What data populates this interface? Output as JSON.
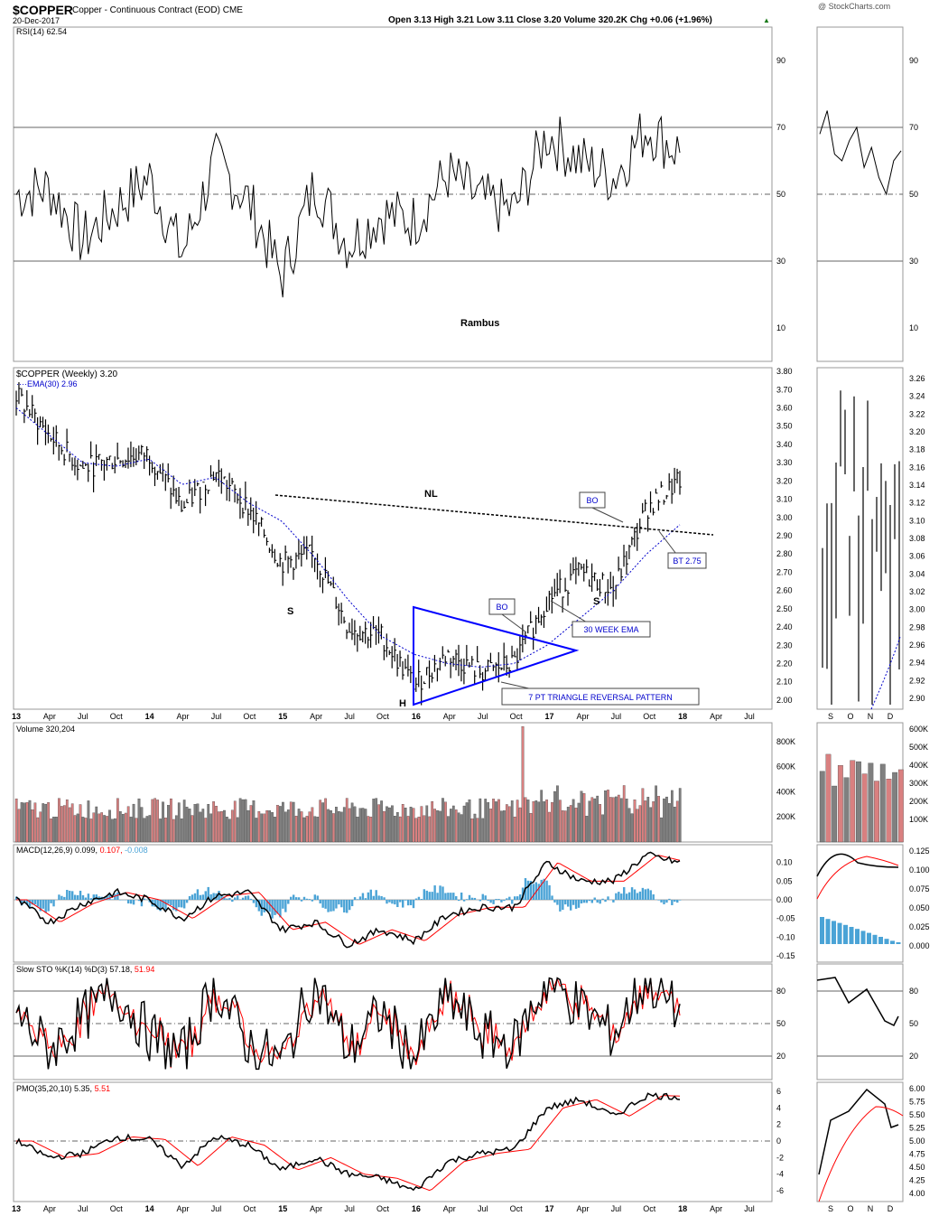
{
  "header": {
    "symbol": "$COPPER",
    "name": "Copper - Continuous Contract (EOD)",
    "exchange": "CME",
    "date": "20-Dec-2017",
    "ohlc": "Open 3.13  High 3.21  Low 3.11  Close 3.20  Volume 320.2K  Chg +0.06 (+1.96%)",
    "ohlc_tail": "▲",
    "watermark": "@ StockCharts.com"
  },
  "author": "Rambus",
  "colors": {
    "up": "#000000",
    "volume_up": "#808080",
    "volume_down": "#d98080",
    "ema": "#0000cc",
    "signal": "#ff0000",
    "histogram": "#4aa3d6",
    "overbought_fill": "#5a8a5a",
    "oversold_fill": "#a04040",
    "triangle": "#0000ff",
    "annotation_text": "#0000cc"
  },
  "panels": {
    "rsi": {
      "label": "RSI(14) 62.54",
      "ticks": [
        "90",
        "70",
        "50",
        "30",
        "10"
      ]
    },
    "price": {
      "label": "$COPPER (Weekly) 3.20",
      "ema_label": "EMA(30) 2.96",
      "ticks": [
        "3.80",
        "3.70",
        "3.60",
        "3.50",
        "3.40",
        "3.30",
        "3.20",
        "3.10",
        "3.00",
        "2.90",
        "2.80",
        "2.70",
        "2.60",
        "2.50",
        "2.40",
        "2.30",
        "2.20",
        "2.10",
        "2.00"
      ],
      "ticks_right": [
        "3.26",
        "3.24",
        "3.22",
        "3.20",
        "3.18",
        "3.16",
        "3.14",
        "3.12",
        "3.10",
        "3.08",
        "3.06",
        "3.04",
        "3.02",
        "3.00",
        "2.98",
        "2.96",
        "2.94",
        "2.92",
        "2.90"
      ]
    },
    "volume": {
      "label": "Volume 320,204",
      "ticks": [
        "800K",
        "600K",
        "400K",
        "200K"
      ],
      "ticks_right": [
        "600K",
        "500K",
        "400K",
        "300K",
        "200K",
        "100K"
      ]
    },
    "macd": {
      "label": "MACD(12,26,9)",
      "v1": "0.099",
      "v2": "0.107",
      "v3": "-0.008",
      "ticks": [
        "0.10",
        "0.05",
        "0.00",
        "-0.05",
        "-0.10",
        "-0.15"
      ],
      "ticks_right": [
        "0.125",
        "0.100",
        "0.075",
        "0.050",
        "0.025",
        "0.000"
      ]
    },
    "sto": {
      "label": "Slow STO %K(14) %D(3)",
      "v1": "57.18",
      "v2": "51.94",
      "ticks": [
        "80",
        "50",
        "20"
      ]
    },
    "pmo": {
      "label": "PMO(35,20,10)",
      "v1": "5.35",
      "v2": "5.51",
      "ticks": [
        "6",
        "4",
        "2",
        "0",
        "-2",
        "-4",
        "-6"
      ],
      "ticks_right": [
        "6.00",
        "5.75",
        "5.50",
        "5.25",
        "5.00",
        "4.75",
        "4.50",
        "4.25",
        "4.00"
      ]
    }
  },
  "x_axis": [
    "13",
    "Apr",
    "Jul",
    "Oct",
    "14",
    "Apr",
    "Jul",
    "Oct",
    "15",
    "Apr",
    "Jul",
    "Oct",
    "16",
    "Apr",
    "Jul",
    "Oct",
    "17",
    "Apr",
    "Jul",
    "Oct",
    "18",
    "Apr",
    "Jul"
  ],
  "x_axis_right": [
    "S",
    "O",
    "N",
    "D"
  ],
  "annotations": {
    "nl": "NL",
    "s1": "S",
    "h": "H",
    "s2": "S",
    "bo1": "BO",
    "bo2": "BO",
    "ema30": "30 WEEK EMA",
    "bt": "BT 2.75",
    "triangle": "7 PT TRIANGLE REVERSAL PATTERN"
  },
  "chart_data": {
    "type": "line",
    "title": "$COPPER (Weekly)",
    "x": [
      "13",
      "Apr",
      "Jul",
      "Oct",
      "14",
      "Apr",
      "Jul",
      "Oct",
      "15",
      "Apr",
      "Jul",
      "Oct",
      "16",
      "Apr",
      "Jul",
      "Oct",
      "17",
      "Apr",
      "Jul",
      "Oct",
      "18"
    ],
    "series": [
      {
        "name": "$COPPER (Weekly)",
        "values": [
          3.67,
          3.45,
          3.27,
          3.32,
          3.35,
          3.05,
          3.25,
          3.05,
          2.75,
          2.8,
          2.4,
          2.35,
          2.08,
          2.25,
          2.15,
          2.2,
          2.55,
          2.7,
          2.6,
          3.05,
          3.2
        ]
      },
      {
        "name": "EMA(30)",
        "values": [
          3.6,
          3.45,
          3.3,
          3.28,
          3.32,
          3.18,
          3.22,
          3.08,
          2.98,
          2.78,
          2.55,
          2.35,
          2.25,
          2.2,
          2.18,
          2.2,
          2.3,
          2.45,
          2.6,
          2.8,
          2.96
        ]
      },
      {
        "name": "RSI(14)",
        "values": [
          50,
          52,
          36,
          46,
          55,
          32,
          60,
          48,
          25,
          53,
          35,
          44,
          42,
          56,
          48,
          45,
          68,
          60,
          55,
          70,
          62.54
        ]
      },
      {
        "name": "MACD(12,26,9)",
        "values": [
          0.0,
          -0.06,
          -0.01,
          0.02,
          0.0,
          -0.05,
          0.01,
          0.02,
          -0.08,
          -0.06,
          -0.12,
          -0.08,
          -0.11,
          -0.04,
          -0.02,
          -0.02,
          0.1,
          0.05,
          0.05,
          0.12,
          0.099
        ]
      },
      {
        "name": "Slow STO %K(14)",
        "values": [
          60,
          25,
          55,
          80,
          40,
          20,
          85,
          30,
          15,
          88,
          25,
          60,
          18,
          75,
          40,
          30,
          90,
          65,
          40,
          92,
          57.18
        ]
      },
      {
        "name": "PMO(35,20,10)",
        "values": [
          0.0,
          -2.0,
          -1.5,
          0.5,
          0.2,
          -3.0,
          0.5,
          -0.5,
          -3.5,
          -2.0,
          -4.0,
          -4.5,
          -6.0,
          -2.5,
          -1.5,
          -1.0,
          4.0,
          5.0,
          3.0,
          5.5,
          5.35
        ]
      }
    ],
    "price_ylim": [
      1.95,
      3.82
    ],
    "volume_ylim": [
      0,
      950000
    ],
    "right_panel_x": [
      "S",
      "O",
      "N",
      "D"
    ]
  }
}
